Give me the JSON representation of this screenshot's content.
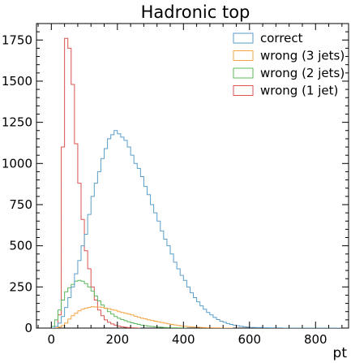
{
  "chart_data": {
    "type": "histogram",
    "title": "Hadronic top",
    "xlabel": "pt",
    "ylabel": "",
    "xlim": [
      -45,
      900
    ],
    "ylim": [
      0,
      1850
    ],
    "xticks": [
      0,
      200,
      400,
      600,
      800
    ],
    "yticks": [
      0,
      250,
      500,
      750,
      1000,
      1250,
      1500,
      1750
    ],
    "legend_position": "top-right",
    "grid": false,
    "series": [
      {
        "name": "correct",
        "color": "#5a9ec9",
        "x": [
          0,
          10,
          20,
          30,
          40,
          50,
          60,
          70,
          80,
          90,
          100,
          110,
          120,
          130,
          140,
          150,
          160,
          170,
          180,
          190,
          200,
          210,
          220,
          230,
          240,
          250,
          260,
          270,
          280,
          290,
          300,
          310,
          320,
          330,
          340,
          350,
          360,
          370,
          380,
          390,
          400,
          410,
          420,
          430,
          440,
          450,
          460,
          470,
          480,
          490,
          500,
          510,
          520,
          530,
          540,
          550,
          560,
          570,
          580,
          590,
          600,
          620,
          640,
          660,
          680,
          700,
          720,
          740,
          760,
          780,
          800,
          820,
          840,
          860,
          880
        ],
        "values": [
          0,
          10,
          30,
          70,
          125,
          185,
          250,
          330,
          410,
          500,
          570,
          690,
          800,
          880,
          950,
          1030,
          1090,
          1150,
          1175,
          1200,
          1180,
          1160,
          1140,
          1100,
          1050,
          1000,
          970,
          920,
          860,
          810,
          750,
          700,
          650,
          590,
          540,
          500,
          450,
          400,
          360,
          320,
          290,
          250,
          215,
          185,
          160,
          135,
          115,
          95,
          80,
          65,
          52,
          42,
          35,
          28,
          22,
          18,
          14,
          11,
          8,
          6,
          4,
          3,
          2,
          1,
          1,
          0,
          0,
          0,
          0,
          0,
          0,
          0,
          0,
          0,
          0
        ]
      },
      {
        "name": "wrong (3 jets)",
        "color": "#f5a442",
        "x": [
          0,
          10,
          20,
          30,
          40,
          50,
          60,
          70,
          80,
          90,
          100,
          110,
          120,
          130,
          140,
          150,
          160,
          170,
          180,
          190,
          200,
          210,
          220,
          230,
          240,
          250,
          260,
          270,
          280,
          290,
          300,
          310,
          320,
          330,
          340,
          350,
          360,
          370,
          380,
          390,
          400,
          410,
          420,
          430,
          440,
          450,
          460,
          470,
          480,
          490,
          500,
          510,
          520,
          530,
          540
        ],
        "values": [
          0,
          2,
          6,
          15,
          30,
          55,
          75,
          90,
          105,
          115,
          120,
          125,
          130,
          128,
          128,
          125,
          120,
          118,
          112,
          108,
          100,
          95,
          90,
          85,
          80,
          72,
          66,
          60,
          56,
          50,
          46,
          42,
          38,
          34,
          30,
          26,
          22,
          19,
          16,
          13,
          11,
          9,
          7,
          6,
          5,
          4,
          3,
          2,
          2,
          1,
          1,
          0,
          0,
          0,
          0
        ]
      },
      {
        "name": "wrong (2 jets)",
        "color": "#5cb85c",
        "x": [
          0,
          10,
          20,
          30,
          40,
          50,
          60,
          70,
          80,
          90,
          100,
          110,
          120,
          130,
          140,
          150,
          160,
          170,
          180,
          190,
          200,
          210,
          220,
          230,
          240,
          250,
          260,
          270,
          280,
          290,
          300,
          310,
          320,
          330,
          340,
          350,
          360,
          370,
          380,
          390,
          400
        ],
        "values": [
          10,
          50,
          110,
          170,
          220,
          245,
          265,
          285,
          290,
          285,
          270,
          250,
          225,
          195,
          165,
          140,
          120,
          100,
          85,
          70,
          60,
          52,
          45,
          38,
          32,
          27,
          22,
          18,
          15,
          12,
          10,
          8,
          6,
          5,
          4,
          3,
          2,
          2,
          1,
          1,
          0
        ]
      },
      {
        "name": "wrong (1 jet)",
        "color": "#d9534f",
        "x": [
          0,
          10,
          20,
          30,
          40,
          50,
          60,
          70,
          80,
          90,
          100,
          110,
          120,
          130,
          140,
          150,
          160,
          170,
          180,
          190,
          200,
          210,
          220,
          230,
          240,
          250,
          260
        ],
        "values": [
          0,
          0,
          80,
          1100,
          1760,
          1700,
          1480,
          1120,
          880,
          660,
          470,
          360,
          250,
          170,
          110,
          75,
          50,
          35,
          25,
          18,
          12,
          8,
          5,
          3,
          2,
          1,
          0
        ]
      }
    ]
  }
}
